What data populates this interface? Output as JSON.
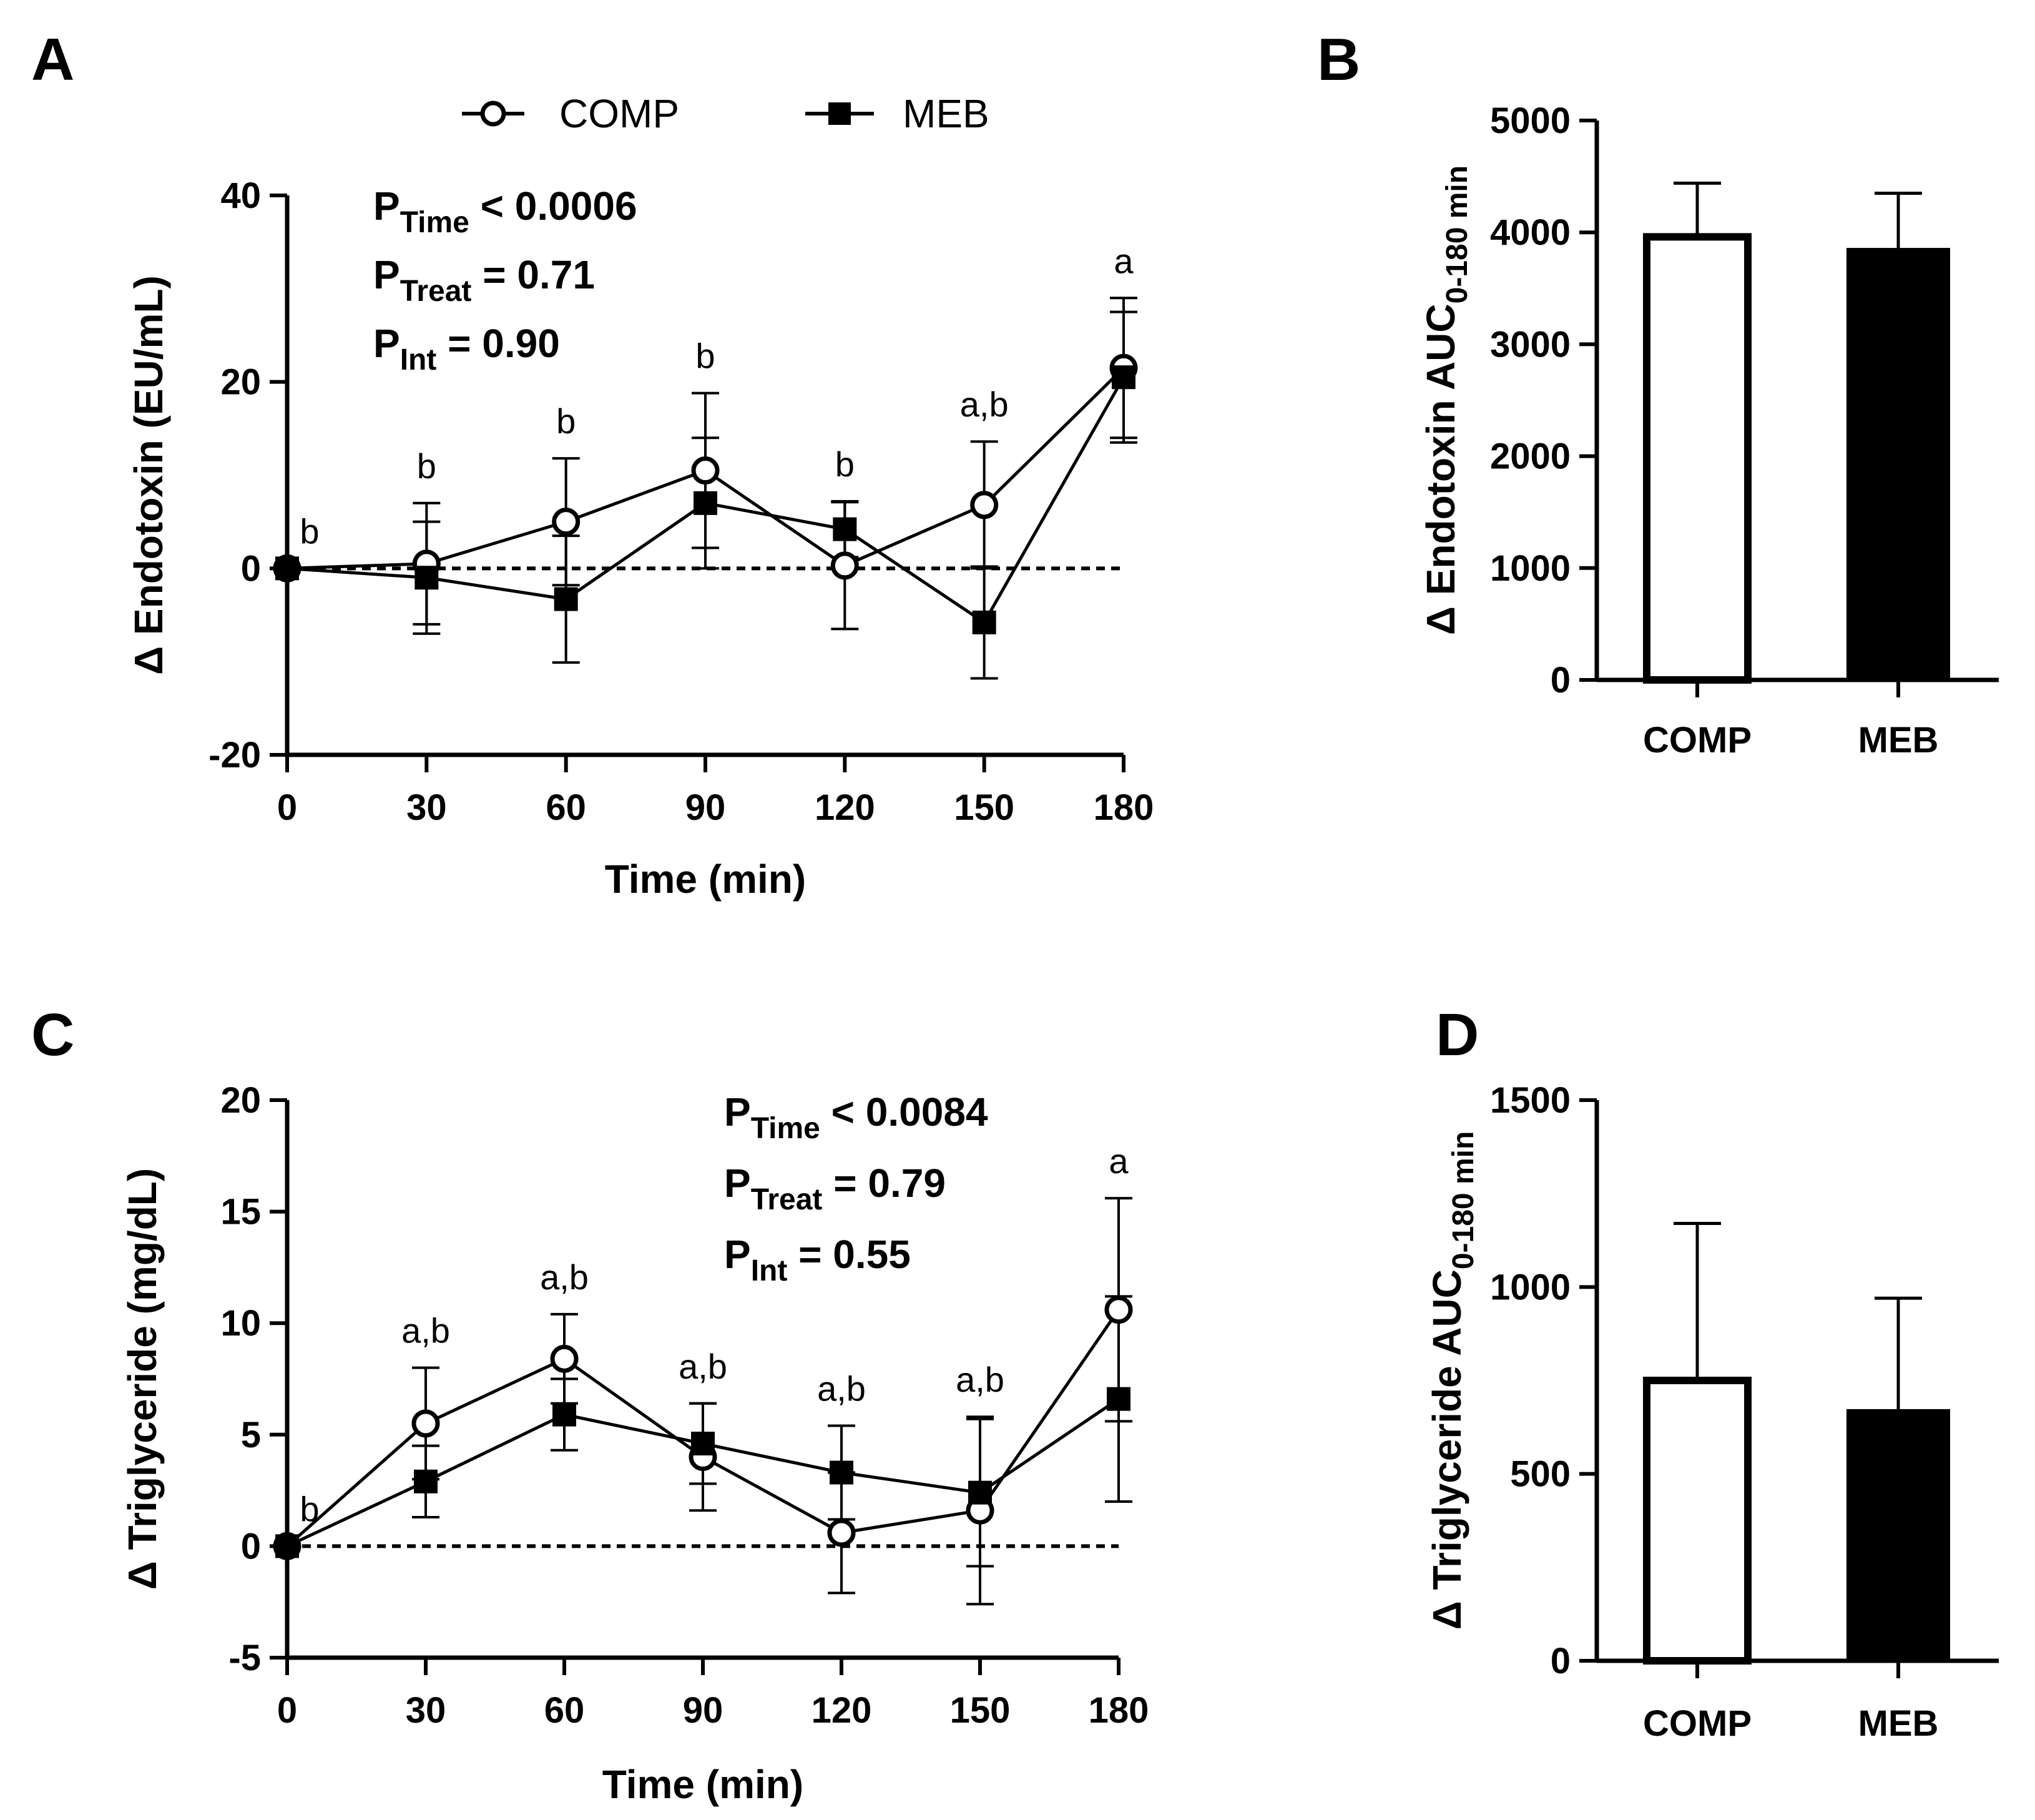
{
  "colors": {
    "ink": "#000000",
    "background": "#ffffff",
    "meb_fill": "#000000",
    "comp_fill": "#ffffff"
  },
  "legend": {
    "comp": "COMP",
    "meb": "MEB"
  },
  "chart_data": [
    {
      "panel": "A",
      "type": "line",
      "xlabel": "Time (min)",
      "ylabel": "Δ Endotoxin (EU/mL)",
      "x": [
        0,
        30,
        60,
        90,
        120,
        150,
        180
      ],
      "x_ticks": [
        "0",
        "30",
        "60",
        "90",
        "120",
        "150",
        "180"
      ],
      "y_ticks": [
        "-20",
        "0",
        "20",
        "40"
      ],
      "ylim": [
        -20,
        40
      ],
      "reference_line_y": 0,
      "series": [
        {
          "name": "COMP",
          "marker": "open-circle",
          "values": [
            0,
            0.5,
            5,
            10.5,
            0.3,
            6.8,
            21.5
          ],
          "errors": [
            0,
            6.5,
            6.8,
            8.3,
            6.8,
            6.8,
            7.5
          ]
        },
        {
          "name": "MEB",
          "marker": "filled-square",
          "values": [
            0,
            -1,
            -3.3,
            7,
            4.2,
            -5.8,
            20.5
          ],
          "errors": [
            0,
            6,
            6.8,
            7,
            3,
            6,
            7
          ]
        }
      ],
      "annotations": [
        "b",
        "b",
        "b",
        "b",
        "b",
        "a,b",
        "a"
      ],
      "stats": [
        {
          "main": "P",
          "sub": "Time",
          "rest": " < 0.0006"
        },
        {
          "main": "P",
          "sub": "Treat",
          "rest": " = 0.71"
        },
        {
          "main": "P",
          "sub": "Int",
          "rest": " = 0.90"
        }
      ]
    },
    {
      "panel": "B",
      "type": "bar",
      "ylabel_main": "Δ Endotoxin AUC",
      "ylabel_sub": "0-180 min",
      "categories": [
        "COMP",
        "MEB"
      ],
      "values": [
        3960,
        3850
      ],
      "errors": [
        480,
        500
      ],
      "y_ticks": [
        "0",
        "1000",
        "2000",
        "3000",
        "4000",
        "5000"
      ],
      "ylim": [
        0,
        5000
      ]
    },
    {
      "panel": "C",
      "type": "line",
      "xlabel": "Time (min)",
      "ylabel": "Δ Triglyceride (mg/dL)",
      "x": [
        0,
        30,
        60,
        90,
        120,
        150,
        180
      ],
      "x_ticks": [
        "0",
        "30",
        "60",
        "90",
        "120",
        "150",
        "180"
      ],
      "y_ticks": [
        "-5",
        "0",
        "5",
        "10",
        "15",
        "20"
      ],
      "ylim": [
        -5,
        20
      ],
      "reference_line_y": 0,
      "series": [
        {
          "name": "COMP",
          "marker": "open-circle",
          "values": [
            0,
            5.5,
            8.4,
            4,
            0.6,
            1.6,
            10.6
          ],
          "errors": [
            0,
            2.5,
            2,
            2.4,
            2.7,
            4.2,
            5
          ]
        },
        {
          "name": "MEB",
          "marker": "filled-square",
          "values": [
            0,
            2.9,
            5.9,
            4.6,
            3.3,
            2.4,
            6.6
          ],
          "errors": [
            0,
            1.6,
            1.6,
            1.8,
            2.1,
            3.3,
            4.6
          ]
        }
      ],
      "annotations": [
        "b",
        "a,b",
        "a,b",
        "a,b",
        "a,b",
        "a,b",
        "a"
      ],
      "stats": [
        {
          "main": "P",
          "sub": "Time",
          "rest": " < 0.0084"
        },
        {
          "main": "P",
          "sub": "Treat",
          "rest": " = 0.79"
        },
        {
          "main": "P",
          "sub": "Int",
          "rest": " = 0.55"
        }
      ]
    },
    {
      "panel": "D",
      "type": "bar",
      "ylabel_main": "Δ Triglyceride AUC",
      "ylabel_sub": "0-180 min",
      "categories": [
        "COMP",
        "MEB"
      ],
      "values": [
        750,
        670
      ],
      "errors": [
        420,
        300
      ],
      "y_ticks": [
        "0",
        "500",
        "1000",
        "1500"
      ],
      "ylim": [
        0,
        1500
      ]
    }
  ]
}
